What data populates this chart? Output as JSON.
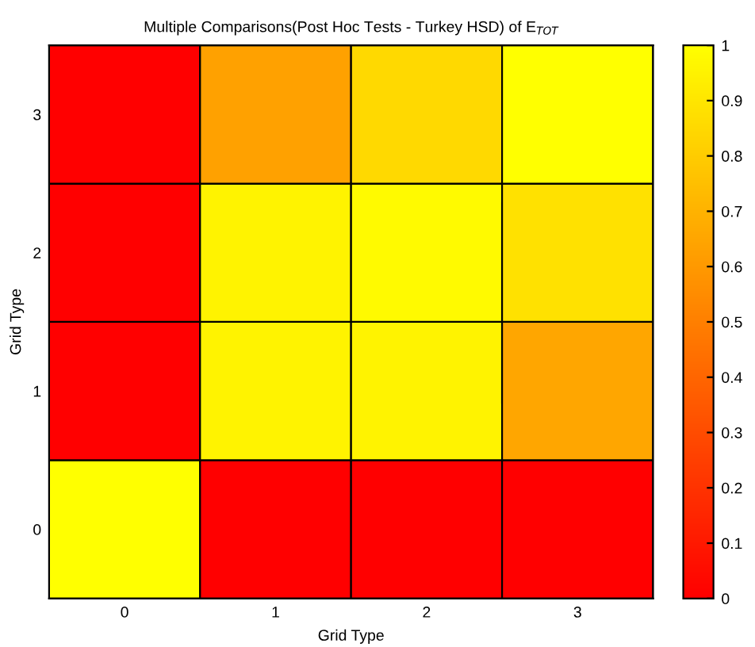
{
  "chart_data": {
    "type": "heatmap",
    "title": "Multiple Comparisons(Post Hoc Tests - Turkey HSD) of E$_{TOT}$",
    "xlabel": "Grid Type",
    "ylabel": "Grid Type",
    "categories": [
      "0",
      "1",
      "2",
      "3"
    ],
    "y_categories": [
      "3",
      "2",
      "1",
      "0"
    ],
    "cells": [
      [
        0,
        0.63,
        0.85,
        1
      ],
      [
        0,
        0.95,
        0.98,
        0.88
      ],
      [
        0,
        0.95,
        0.95,
        0.65
      ],
      [
        1,
        0,
        0,
        0
      ]
    ],
    "clim": [
      0,
      1
    ],
    "cticks": [
      0,
      0.1,
      0.2,
      0.3,
      0.4,
      0.5,
      0.6,
      0.7,
      0.8,
      0.9,
      1
    ]
  }
}
